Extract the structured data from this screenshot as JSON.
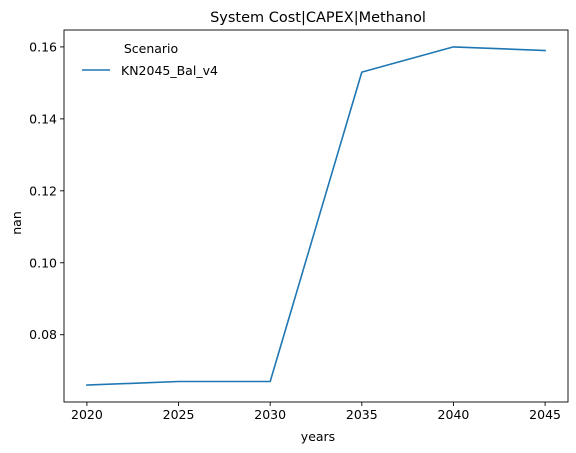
{
  "chart_data": {
    "type": "line",
    "title": "System Cost|CAPEX|Methanol",
    "xlabel": "years",
    "ylabel": "nan",
    "x": [
      2020,
      2025,
      2030,
      2035,
      2040,
      2045
    ],
    "xticks": [
      "2020",
      "2025",
      "2030",
      "2035",
      "2040",
      "2045"
    ],
    "xlim": [
      2018.75,
      2046.25
    ],
    "yticks": [
      "0.08",
      "0.10",
      "0.12",
      "0.14",
      "0.16"
    ],
    "ylim": [
      0.0613,
      0.1647
    ],
    "grid": false,
    "legend": {
      "title": "Scenario",
      "placement": "top-left"
    },
    "series": [
      {
        "name": "KN2045_Bal_v4",
        "color": "#1f77b4",
        "values": [
          0.066,
          0.067,
          0.067,
          0.153,
          0.16,
          0.159
        ]
      }
    ]
  }
}
